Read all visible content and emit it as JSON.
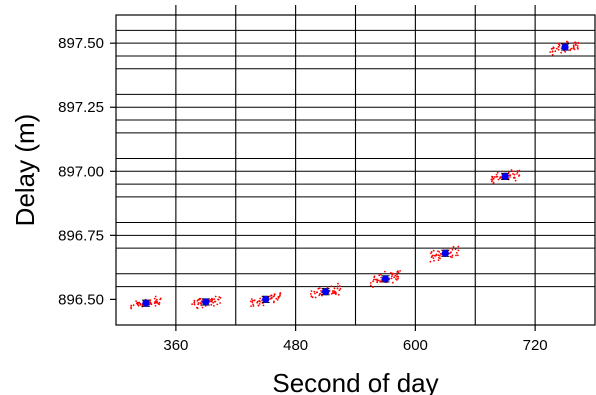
{
  "chart_data": {
    "type": "scatter",
    "xlabel": "Second of day",
    "ylabel": "Delay (m)",
    "xlim": [
      300,
      780
    ],
    "ylim": [
      896.4,
      897.61
    ],
    "x_ticks": [
      {
        "value": 360,
        "label": "360"
      },
      {
        "value": 480,
        "label": "480"
      },
      {
        "value": 600,
        "label": "600"
      },
      {
        "value": 720,
        "label": "720"
      }
    ],
    "y_ticks": [
      {
        "value": 896.5,
        "label": "896.50"
      },
      {
        "value": 896.75,
        "label": "896.75"
      },
      {
        "value": 897.0,
        "label": "897.00"
      },
      {
        "value": 897.25,
        "label": "897.25"
      },
      {
        "value": 897.5,
        "label": "897.50"
      }
    ],
    "x_gridlines": [
      360,
      420,
      480,
      540,
      600,
      660,
      720
    ],
    "y_gridlines": [
      896.55,
      896.6,
      896.7,
      896.75,
      896.8,
      896.9,
      896.95,
      897.0,
      897.05,
      897.15,
      897.2,
      897.25,
      897.3,
      897.4,
      897.45,
      897.5,
      897.55
    ],
    "grid": true,
    "groups": [
      {
        "x_from": 315,
        "x_to": 345,
        "mean_x": 330,
        "mean_y": 896.485,
        "error": 0.012,
        "scatter_spread": 0.025
      },
      {
        "x_from": 375,
        "x_to": 405,
        "mean_x": 390,
        "mean_y": 896.49,
        "error": 0.012,
        "scatter_spread": 0.025
      },
      {
        "x_from": 435,
        "x_to": 465,
        "mean_x": 450,
        "mean_y": 896.5,
        "error": 0.012,
        "scatter_spread": 0.025
      },
      {
        "x_from": 495,
        "x_to": 525,
        "mean_x": 510,
        "mean_y": 896.53,
        "error": 0.012,
        "scatter_spread": 0.025
      },
      {
        "x_from": 555,
        "x_to": 585,
        "mean_x": 570,
        "mean_y": 896.58,
        "error": 0.012,
        "scatter_spread": 0.03
      },
      {
        "x_from": 615,
        "x_to": 645,
        "mean_x": 630,
        "mean_y": 896.68,
        "error": 0.012,
        "scatter_spread": 0.025
      },
      {
        "x_from": 675,
        "x_to": 705,
        "mean_x": 690,
        "mean_y": 896.98,
        "error": 0.012,
        "scatter_spread": 0.025
      },
      {
        "x_from": 735,
        "x_to": 765,
        "mean_x": 750,
        "mean_y": 897.485,
        "error": 0.012,
        "scatter_spread": 0.025
      }
    ],
    "colors": {
      "scatter": "#ff0000",
      "mean": "#0000ee",
      "error_bar": "#000000",
      "grid": "#000000"
    }
  }
}
